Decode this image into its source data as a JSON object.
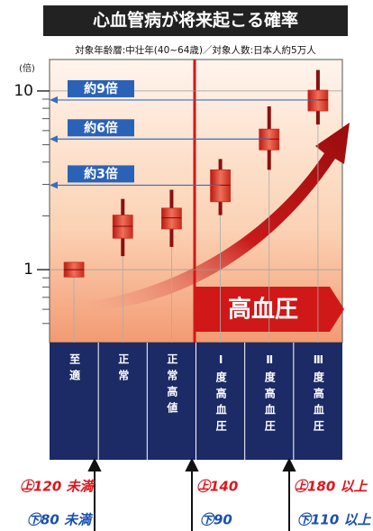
{
  "chart_data": {
    "type": "candlestick",
    "title": "心血管病が将来起こる確率",
    "subtitle": "対象年齢層:中壮年(40~64歳)／対象人数:日本人約5万人",
    "y_label": "(倍)",
    "log_scale": true,
    "ylim": [
      0.4,
      15
    ],
    "yticks": [
      1,
      10
    ],
    "minor_yticks": [
      0.5,
      0.6,
      0.7,
      0.8,
      0.9,
      2,
      3,
      4,
      5,
      6,
      7,
      8,
      9
    ],
    "categories": [
      "至適",
      "正常",
      "正常高値",
      "Ⅰ度高血圧",
      "Ⅱ度高血圧",
      "Ⅲ度高血圧"
    ],
    "values": [
      1,
      1.75,
      1.95,
      2.97,
      5.38,
      8.9
    ],
    "box_low": [
      0.91,
      1.5,
      1.69,
      2.4,
      4.68,
      7.73
    ],
    "box_high": [
      1.1,
      2.02,
      2.21,
      3.62,
      6.12,
      10.1
    ],
    "whisker_low": [
      null,
      1.19,
      1.34,
      2.02,
      3.62,
      6.49
    ],
    "whisker_high": [
      null,
      2.49,
      2.8,
      4.16,
      8.2,
      13.1
    ],
    "color": "#d0281c",
    "ratio_labels": [
      null,
      null,
      null,
      "約3倍",
      "約6倍",
      "約9倍"
    ],
    "band_label": "高血圧",
    "thresholds": [
      {
        "upper": "㊤120 未満",
        "lower": "㊦80 未満"
      },
      {
        "upper": "㊤140",
        "lower": "㊦90"
      },
      {
        "upper": "㊤180 以上",
        "lower": "㊦110 以上"
      }
    ]
  }
}
